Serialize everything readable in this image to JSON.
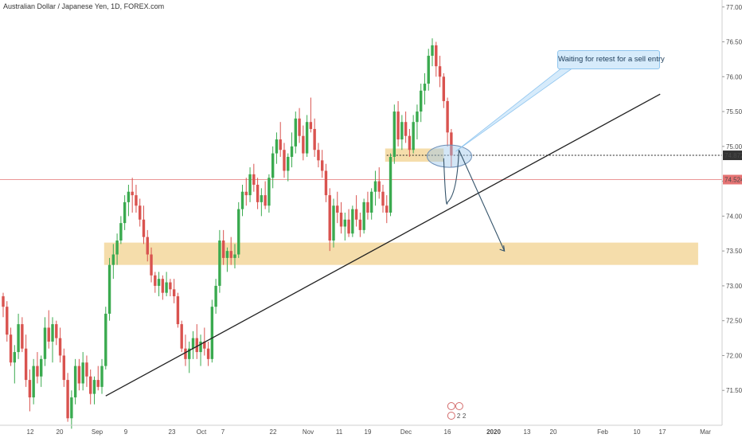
{
  "header": {
    "title": "Australian Dollar / Japanese Yen, 1D, FOREX.com"
  },
  "annotation": {
    "text": "Waiting for retest for a sell entry"
  },
  "colors": {
    "up": "#26a69a",
    "up_fill": "#3aaa4f",
    "down": "#d9534f",
    "zone": "#f2d28f",
    "trendline": "#222222",
    "price_line": "#e57373",
    "callout": "#d6ebfb",
    "callout_border": "#8fc5ef",
    "arrow": "#35546b",
    "last_badge": "#333333",
    "ref_badge": "#e57373"
  },
  "chart_data": {
    "type": "candlestick",
    "symbol": "Australian Dollar / Japanese Yen, 1D, FOREX.com",
    "ylim": [
      71.0,
      77.1
    ],
    "y_ticks": [
      "77.000",
      "76.500",
      "76.000",
      "75.500",
      "75.000",
      "74.500",
      "74.000",
      "73.500",
      "73.000",
      "72.500",
      "72.000",
      "71.500"
    ],
    "x_ticks": [
      "12",
      "20",
      "Sep",
      "9",
      "23",
      "Oct",
      "7",
      "22",
      "Nov",
      "11",
      "19",
      "Dec",
      "16",
      "2020",
      "13",
      "20",
      "Feb",
      "10",
      "17",
      "Mar"
    ],
    "price_labels": {
      "last": "74.872",
      "reference": "74.524"
    },
    "markers": [
      "2",
      "2"
    ],
    "candles": [
      [
        72.85,
        72.9,
        72.55,
        72.7
      ],
      [
        72.7,
        72.78,
        72.2,
        72.3
      ],
      [
        72.3,
        72.4,
        71.85,
        71.9
      ],
      [
        71.9,
        72.15,
        71.6,
        72.05
      ],
      [
        72.05,
        72.6,
        71.95,
        72.45
      ],
      [
        72.45,
        72.55,
        72.05,
        72.1
      ],
      [
        72.1,
        72.3,
        71.55,
        71.65
      ],
      [
        71.65,
        71.8,
        71.2,
        71.4
      ],
      [
        71.4,
        71.95,
        71.3,
        71.85
      ],
      [
        71.85,
        72.05,
        71.6,
        71.7
      ],
      [
        71.7,
        72.0,
        71.55,
        71.95
      ],
      [
        71.95,
        72.55,
        71.85,
        72.4
      ],
      [
        72.4,
        72.65,
        72.1,
        72.2
      ],
      [
        72.2,
        72.55,
        71.9,
        72.45
      ],
      [
        72.45,
        72.5,
        72.15,
        72.25
      ],
      [
        72.25,
        72.4,
        71.9,
        72.0
      ],
      [
        72.0,
        72.1,
        71.55,
        71.65
      ],
      [
        71.65,
        71.75,
        71.05,
        71.1
      ],
      [
        71.1,
        71.5,
        70.95,
        71.4
      ],
      [
        71.4,
        71.95,
        71.3,
        71.85
      ],
      [
        71.85,
        71.95,
        71.5,
        71.6
      ],
      [
        71.6,
        72.05,
        71.5,
        71.9
      ],
      [
        71.9,
        72.0,
        71.55,
        71.7
      ],
      [
        71.7,
        71.8,
        71.3,
        71.45
      ],
      [
        71.45,
        71.7,
        71.3,
        71.65
      ],
      [
        71.65,
        71.85,
        71.5,
        71.55
      ],
      [
        71.55,
        71.95,
        71.45,
        71.85
      ],
      [
        71.85,
        72.7,
        71.8,
        72.6
      ],
      [
        72.6,
        73.4,
        72.5,
        73.3
      ],
      [
        73.3,
        73.6,
        73.1,
        73.45
      ],
      [
        73.45,
        73.75,
        73.3,
        73.65
      ],
      [
        73.65,
        74.0,
        73.6,
        73.9
      ],
      [
        73.9,
        74.3,
        73.8,
        74.2
      ],
      [
        74.2,
        74.45,
        74.0,
        74.35
      ],
      [
        74.35,
        74.55,
        74.05,
        74.3
      ],
      [
        74.3,
        74.45,
        74.05,
        74.15
      ],
      [
        74.15,
        74.25,
        73.85,
        73.95
      ],
      [
        73.95,
        74.15,
        73.6,
        73.7
      ],
      [
        73.7,
        73.8,
        73.35,
        73.45
      ],
      [
        73.45,
        73.55,
        73.05,
        73.15
      ],
      [
        73.15,
        73.2,
        72.9,
        73.0
      ],
      [
        73.0,
        73.2,
        72.85,
        73.1
      ],
      [
        73.1,
        73.15,
        72.8,
        72.9
      ],
      [
        72.9,
        73.2,
        72.85,
        73.05
      ],
      [
        73.05,
        73.1,
        72.85,
        72.95
      ],
      [
        72.95,
        73.1,
        72.75,
        72.85
      ],
      [
        72.85,
        72.9,
        72.4,
        72.45
      ],
      [
        72.45,
        72.5,
        72.05,
        72.1
      ],
      [
        72.1,
        72.3,
        71.85,
        71.95
      ],
      [
        71.95,
        72.2,
        71.75,
        72.1
      ],
      [
        72.1,
        72.35,
        71.95,
        72.25
      ],
      [
        72.25,
        72.45,
        71.95,
        72.05
      ],
      [
        72.05,
        72.3,
        71.85,
        72.2
      ],
      [
        72.2,
        72.4,
        72.0,
        72.1
      ],
      [
        72.1,
        72.2,
        71.85,
        71.95
      ],
      [
        71.95,
        72.8,
        71.9,
        72.7
      ],
      [
        72.7,
        73.1,
        72.6,
        73.0
      ],
      [
        73.0,
        73.8,
        72.9,
        73.65
      ],
      [
        73.65,
        73.8,
        73.3,
        73.4
      ],
      [
        73.4,
        73.55,
        73.2,
        73.5
      ],
      [
        73.5,
        73.7,
        73.3,
        73.4
      ],
      [
        73.4,
        73.6,
        73.25,
        73.45
      ],
      [
        73.45,
        74.2,
        73.4,
        74.1
      ],
      [
        74.1,
        74.45,
        74.0,
        74.35
      ],
      [
        74.35,
        74.55,
        74.15,
        74.3
      ],
      [
        74.3,
        74.7,
        74.2,
        74.6
      ],
      [
        74.6,
        74.75,
        74.35,
        74.45
      ],
      [
        74.45,
        74.55,
        74.1,
        74.2
      ],
      [
        74.2,
        74.4,
        74.0,
        74.3
      ],
      [
        74.3,
        74.5,
        74.1,
        74.15
      ],
      [
        74.15,
        74.6,
        74.05,
        74.55
      ],
      [
        74.55,
        75.0,
        74.4,
        74.9
      ],
      [
        74.9,
        75.2,
        74.75,
        75.1
      ],
      [
        75.1,
        75.35,
        74.85,
        74.95
      ],
      [
        74.95,
        75.05,
        74.55,
        74.65
      ],
      [
        74.65,
        74.9,
        74.5,
        74.85
      ],
      [
        74.85,
        75.2,
        74.7,
        75.0
      ],
      [
        75.0,
        75.5,
        74.9,
        75.4
      ],
      [
        75.4,
        75.55,
        75.05,
        75.15
      ],
      [
        75.15,
        75.3,
        74.8,
        74.9
      ],
      [
        74.9,
        75.45,
        74.85,
        75.35
      ],
      [
        75.35,
        75.7,
        75.2,
        75.25
      ],
      [
        75.25,
        75.4,
        74.85,
        74.95
      ],
      [
        74.95,
        75.05,
        74.7,
        74.8
      ],
      [
        74.8,
        74.95,
        74.55,
        74.65
      ],
      [
        74.65,
        74.75,
        74.2,
        74.3
      ],
      [
        74.3,
        74.4,
        73.5,
        73.65
      ],
      [
        73.65,
        74.25,
        73.55,
        74.15
      ],
      [
        74.15,
        74.35,
        73.9,
        74.05
      ],
      [
        74.05,
        74.2,
        73.75,
        73.85
      ],
      [
        73.85,
        74.05,
        73.65,
        73.95
      ],
      [
        73.95,
        74.1,
        73.7,
        73.75
      ],
      [
        73.75,
        74.15,
        73.7,
        74.1
      ],
      [
        74.1,
        74.3,
        73.85,
        73.95
      ],
      [
        73.95,
        74.05,
        73.7,
        73.8
      ],
      [
        73.8,
        74.25,
        73.75,
        74.2
      ],
      [
        74.2,
        74.35,
        73.95,
        74.05
      ],
      [
        74.05,
        74.4,
        73.95,
        74.35
      ],
      [
        74.35,
        74.65,
        74.15,
        74.5
      ],
      [
        74.5,
        74.7,
        74.25,
        74.35
      ],
      [
        74.35,
        74.45,
        74.05,
        74.15
      ],
      [
        74.15,
        74.3,
        73.9,
        74.05
      ],
      [
        74.05,
        74.9,
        74.0,
        74.85
      ],
      [
        74.85,
        75.6,
        74.75,
        75.5
      ],
      [
        75.5,
        75.65,
        75.0,
        75.1
      ],
      [
        75.1,
        75.45,
        74.95,
        75.35
      ],
      [
        75.35,
        75.5,
        75.05,
        75.15
      ],
      [
        75.15,
        75.25,
        74.85,
        74.95
      ],
      [
        74.95,
        75.45,
        74.9,
        75.35
      ],
      [
        75.35,
        75.6,
        75.1,
        75.5
      ],
      [
        75.5,
        75.9,
        75.35,
        75.8
      ],
      [
        75.8,
        76.05,
        75.6,
        75.9
      ],
      [
        75.9,
        76.4,
        75.8,
        76.3
      ],
      [
        76.3,
        76.55,
        76.15,
        76.45
      ],
      [
        76.45,
        76.5,
        76.0,
        76.15
      ],
      [
        76.15,
        76.3,
        75.85,
        76.0
      ],
      [
        76.0,
        76.05,
        75.55,
        75.65
      ],
      [
        75.65,
        75.7,
        75.0,
        75.2
      ],
      [
        75.2,
        75.25,
        74.7,
        74.87
      ]
    ],
    "zones": [
      {
        "from_index": 101,
        "to_index": 116,
        "low": 74.78,
        "high": 74.97
      },
      {
        "from_index": 27,
        "to_index": 183,
        "low": 73.3,
        "high": 73.62
      }
    ],
    "trendline": {
      "from": {
        "index": 27,
        "value": 71.42
      },
      "to": {
        "index": 173,
        "value": 75.75
      }
    },
    "projection": {
      "points": [
        [
          116,
          74.83
        ],
        [
          117,
          74.2
        ],
        [
          120,
          74.95
        ],
        [
          132,
          73.5
        ]
      ]
    }
  }
}
